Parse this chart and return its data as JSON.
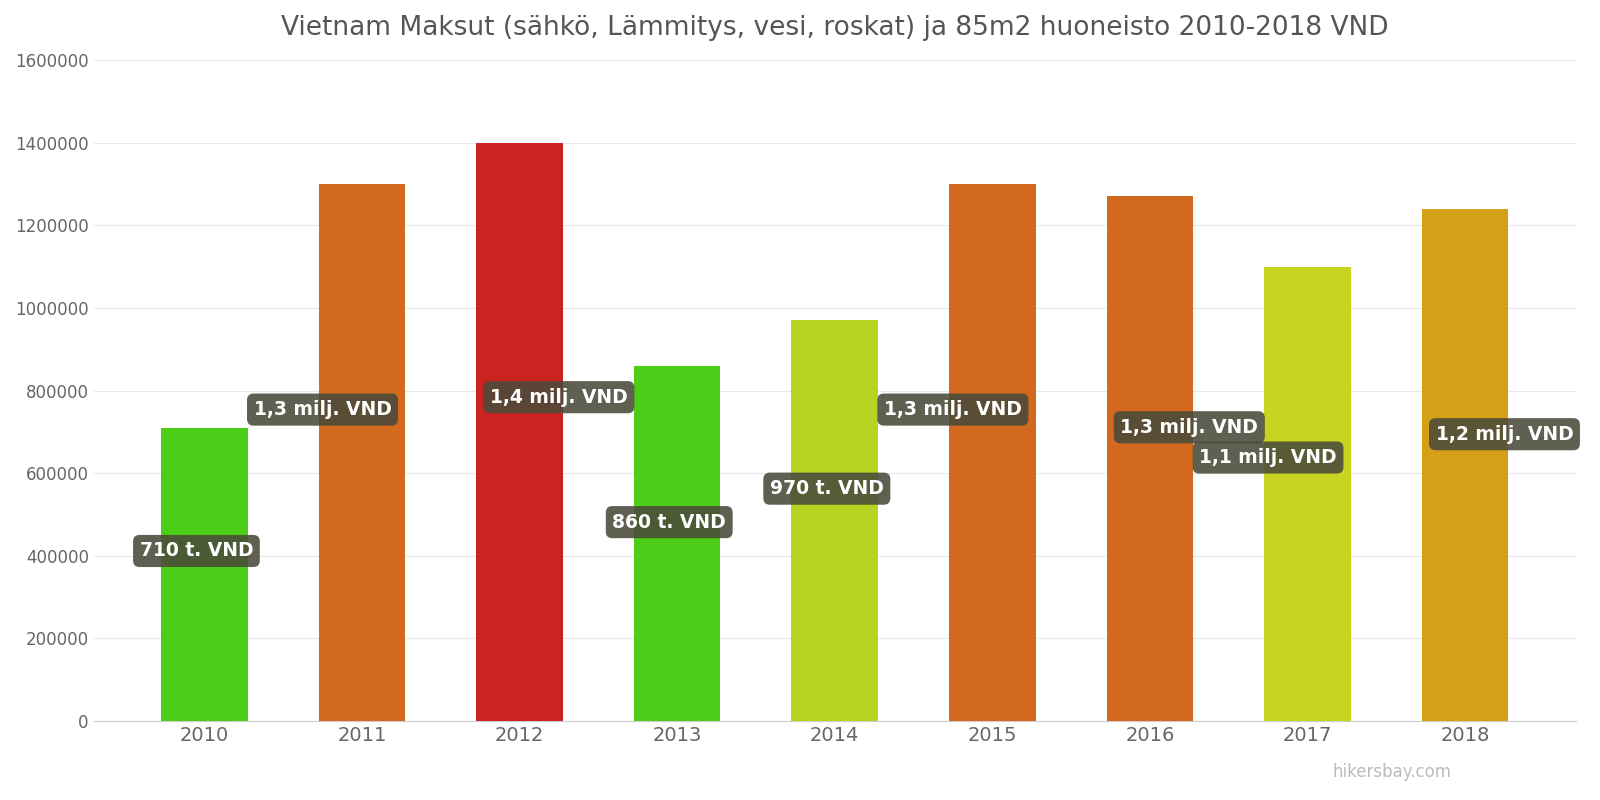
{
  "title": "Vietnam Maksut (sähkö, Lämmitys, vesi, roskat) ja 85m2 huoneisto 2010-2018 VND",
  "years": [
    2010,
    2011,
    2012,
    2013,
    2014,
    2015,
    2016,
    2017,
    2018
  ],
  "values": [
    710000,
    1300000,
    1400000,
    860000,
    970000,
    1300000,
    1270000,
    1100000,
    1240000
  ],
  "bar_colors": [
    "#4cce18",
    "#d2691e",
    "#cc2222",
    "#4cce18",
    "#b8d422",
    "#d2691e",
    "#d2691e",
    "#c8d422",
    "#d4a017"
  ],
  "labels": [
    "710 t. VND",
    "1,3 milj. VND",
    "1,4 milj. VND",
    "860 t. VND",
    "970 t. VND",
    "1,3 milj. VND",
    "1,3 milj. VND",
    "1,1 milj. VND",
    "1,2 milj. VND"
  ],
  "label_x_offsets": [
    -0.05,
    -0.25,
    0.25,
    -0.05,
    -0.05,
    -0.25,
    0.25,
    -0.25,
    0.25
  ],
  "label_y_fracs": [
    0.58,
    0.58,
    0.56,
    0.56,
    0.58,
    0.58,
    0.56,
    0.58,
    0.56
  ],
  "ylim": [
    0,
    1600000
  ],
  "yticks": [
    0,
    200000,
    400000,
    600000,
    800000,
    1000000,
    1200000,
    1400000,
    1600000
  ],
  "background_color": "#ffffff",
  "title_fontsize": 19,
  "watermark": "hikersbay.com"
}
